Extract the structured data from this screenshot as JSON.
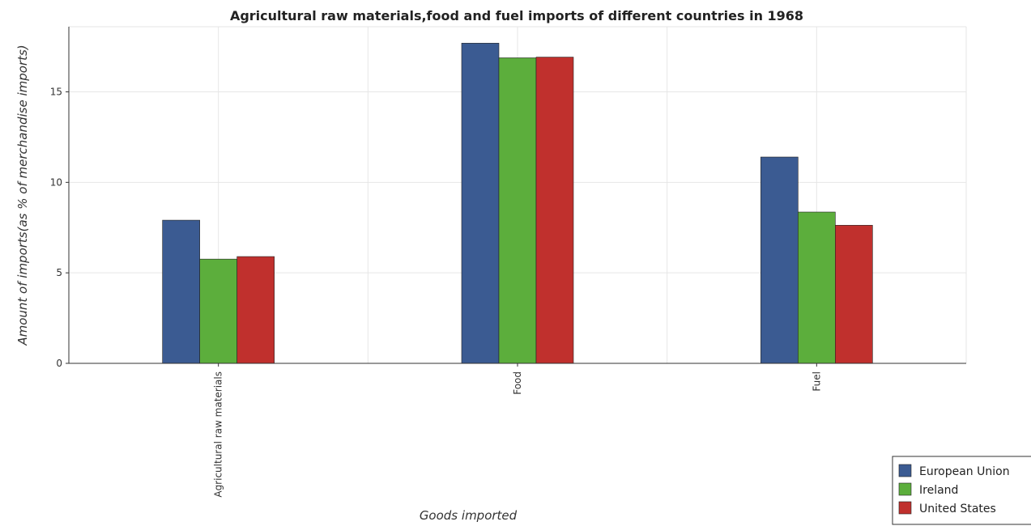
{
  "chart_data": {
    "type": "bar",
    "title": "Agricultural raw materials,food and fuel imports of different countries in 1968",
    "xlabel": "Goods imported",
    "ylabel": "Amount of imports(as % of merchandise imports)",
    "categories": [
      "Agricultural raw materials",
      "Food",
      "Fuel"
    ],
    "series": [
      {
        "name": "European Union",
        "color": "#3b5b92",
        "values": [
          7.91,
          17.69,
          11.4
        ]
      },
      {
        "name": "Ireland",
        "color": "#5cae3c",
        "values": [
          5.76,
          16.88,
          8.36
        ]
      },
      {
        "name": "United States",
        "color": "#c0302d",
        "values": [
          5.9,
          16.92,
          7.63
        ]
      }
    ],
    "ylim": [
      0,
      18.6
    ],
    "yticks": [
      0,
      5,
      10,
      15
    ],
    "grid": true,
    "legend_position": "bottom-right"
  }
}
